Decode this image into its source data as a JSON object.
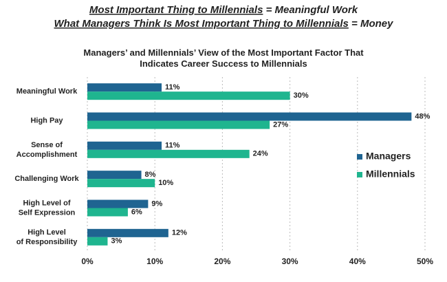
{
  "header": {
    "line1": {
      "emphasis": "Most Important Thing to Millennials",
      "rest": " = Meaningful Work"
    },
    "line2": {
      "emphasis": "What Managers Think Is Most Important Thing to Millennials",
      "rest": " = Money"
    }
  },
  "chart_data": {
    "type": "bar",
    "orientation": "horizontal",
    "title": "Managers’ and Millennials’ View of the Most Important Factor That\nIndicates Career Success to Millennials",
    "categories": [
      "Meaningful Work",
      "High Pay",
      "Sense of\nAccomplishment",
      "Challenging Work",
      "High Level of\nSelf Expression",
      "High Level\nof Responsibility"
    ],
    "series": [
      {
        "name": "Managers",
        "color": "#1f6491",
        "values": [
          11,
          48,
          11,
          8,
          9,
          12
        ],
        "value_labels": [
          "11%",
          "48%",
          "11%",
          "8%",
          "9%",
          "12%"
        ]
      },
      {
        "name": "Millennials",
        "color": "#1fb58f",
        "values": [
          30,
          27,
          24,
          10,
          6,
          3
        ],
        "value_labels": [
          "30%",
          "27%",
          "24%",
          "10%",
          "6%",
          "3%"
        ]
      }
    ],
    "xlim": [
      0,
      50
    ],
    "xticks": [
      {
        "value": 0,
        "label": "0%"
      },
      {
        "value": 10,
        "label": "10%"
      },
      {
        "value": 20,
        "label": "20%"
      },
      {
        "value": 30,
        "label": "30%"
      },
      {
        "value": 40,
        "label": "40%"
      },
      {
        "value": 50,
        "label": "50%"
      }
    ],
    "grid": true,
    "legend": "right"
  }
}
